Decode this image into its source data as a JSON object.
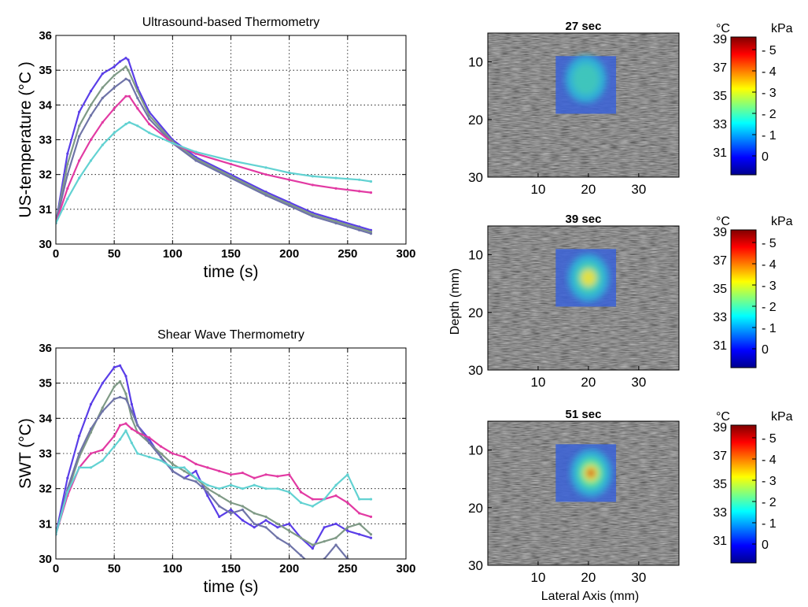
{
  "colors": {
    "series_blue": "#5a3ee8",
    "series_green": "#7f9a86",
    "series_slate": "#6f74a8",
    "series_magenta": "#e23aa3",
    "series_cyan": "#62d2d2"
  },
  "chart_data": [
    {
      "type": "line",
      "title": "Ultrasound-based Thermometry",
      "xlabel": "time (s)",
      "ylabel": "US-temperature (°C )",
      "xlim": [
        0,
        300
      ],
      "ylim": [
        30,
        36
      ],
      "xticks": [
        "0",
        "50",
        "100",
        "150",
        "200",
        "250",
        "300"
      ],
      "yticks": [
        "30",
        "31",
        "32",
        "33",
        "34",
        "35",
        "36"
      ],
      "grid": true,
      "series": [
        {
          "color": "#5a3ee8",
          "x": [
            0,
            10,
            20,
            30,
            40,
            50,
            55,
            60,
            62,
            70,
            80,
            100,
            120,
            150,
            180,
            200,
            220,
            240,
            260,
            270
          ],
          "y": [
            30.6,
            32.6,
            33.8,
            34.4,
            34.9,
            35.1,
            35.25,
            35.35,
            35.3,
            34.5,
            33.8,
            33.0,
            32.5,
            32.0,
            31.5,
            31.2,
            30.9,
            30.7,
            30.5,
            30.4
          ]
        },
        {
          "color": "#7f9a86",
          "x": [
            0,
            10,
            20,
            30,
            40,
            50,
            60,
            62,
            70,
            80,
            100,
            120,
            150,
            180,
            200,
            220,
            240,
            260,
            270
          ],
          "y": [
            30.6,
            32.3,
            33.4,
            34.0,
            34.5,
            34.85,
            35.1,
            35.0,
            34.4,
            33.7,
            32.95,
            32.45,
            31.95,
            31.45,
            31.15,
            30.85,
            30.65,
            30.45,
            30.35
          ]
        },
        {
          "color": "#6f74a8",
          "x": [
            0,
            10,
            20,
            30,
            40,
            50,
            60,
            63,
            70,
            80,
            100,
            120,
            150,
            180,
            200,
            220,
            240,
            260,
            270
          ],
          "y": [
            30.6,
            32.0,
            33.1,
            33.7,
            34.2,
            34.5,
            34.75,
            34.7,
            34.2,
            33.6,
            32.9,
            32.4,
            31.9,
            31.4,
            31.1,
            30.8,
            30.6,
            30.4,
            30.3
          ]
        },
        {
          "color": "#e23aa3",
          "x": [
            0,
            10,
            20,
            30,
            40,
            50,
            60,
            63,
            70,
            80,
            100,
            120,
            150,
            180,
            200,
            220,
            240,
            260,
            270
          ],
          "y": [
            30.6,
            31.6,
            32.4,
            33.0,
            33.5,
            33.9,
            34.25,
            34.25,
            33.9,
            33.45,
            32.9,
            32.6,
            32.3,
            32.0,
            31.85,
            31.7,
            31.6,
            31.52,
            31.48
          ]
        },
        {
          "color": "#62d2d2",
          "x": [
            0,
            10,
            20,
            30,
            40,
            50,
            60,
            63,
            70,
            80,
            100,
            120,
            150,
            180,
            200,
            220,
            240,
            260,
            270
          ],
          "y": [
            30.6,
            31.3,
            31.9,
            32.4,
            32.85,
            33.2,
            33.45,
            33.5,
            33.4,
            33.2,
            32.9,
            32.65,
            32.4,
            32.2,
            32.05,
            31.95,
            31.9,
            31.85,
            31.8
          ]
        }
      ]
    },
    {
      "type": "line",
      "title": "Shear Wave Thermometry",
      "xlabel": "time (s)",
      "ylabel": "SWT (°C)",
      "xlim": [
        0,
        300
      ],
      "ylim": [
        30,
        36
      ],
      "xticks": [
        "0",
        "50",
        "100",
        "150",
        "200",
        "250",
        "300"
      ],
      "yticks": [
        "30",
        "31",
        "32",
        "33",
        "34",
        "35",
        "36"
      ],
      "grid": true,
      "series": [
        {
          "color": "#5a3ee8",
          "x": [
            0,
            10,
            20,
            30,
            40,
            50,
            55,
            60,
            65,
            70,
            80,
            90,
            100,
            110,
            120,
            130,
            140,
            150,
            160,
            170,
            180,
            190,
            200,
            210,
            220,
            230,
            240,
            250,
            260,
            270
          ],
          "y": [
            30.7,
            32.3,
            33.5,
            34.4,
            35.0,
            35.45,
            35.5,
            35.2,
            34.4,
            33.8,
            33.4,
            32.9,
            32.5,
            32.3,
            32.5,
            31.8,
            31.2,
            31.4,
            31.1,
            30.9,
            31.1,
            30.9,
            31.0,
            30.6,
            30.3,
            30.9,
            31.0,
            30.8,
            30.7,
            30.6
          ]
        },
        {
          "color": "#7f9a86",
          "x": [
            0,
            10,
            20,
            30,
            40,
            50,
            55,
            60,
            65,
            70,
            80,
            90,
            100,
            110,
            120,
            130,
            140,
            150,
            160,
            170,
            180,
            190,
            200,
            210,
            220,
            230,
            240,
            250,
            260,
            270
          ],
          "y": [
            30.7,
            31.9,
            32.9,
            33.6,
            34.3,
            34.9,
            35.05,
            34.7,
            34.0,
            33.6,
            33.3,
            33.0,
            32.7,
            32.5,
            32.3,
            32.0,
            31.8,
            31.6,
            31.5,
            31.3,
            31.2,
            31.0,
            30.8,
            30.6,
            30.4,
            30.5,
            30.6,
            30.9,
            31.0,
            30.7
          ]
        },
        {
          "color": "#6f74a8",
          "x": [
            0,
            10,
            20,
            30,
            40,
            50,
            55,
            60,
            65,
            70,
            80,
            90,
            100,
            110,
            120,
            130,
            140,
            150,
            160,
            170,
            180,
            190,
            200,
            210,
            220,
            230,
            240,
            250,
            260,
            270
          ],
          "y": [
            30.7,
            32.0,
            33.0,
            33.7,
            34.2,
            34.55,
            34.6,
            34.55,
            34.2,
            33.8,
            33.3,
            32.9,
            32.5,
            32.3,
            32.2,
            31.9,
            31.5,
            31.3,
            31.4,
            31.0,
            30.9,
            30.6,
            30.4,
            30.1,
            29.8,
            30.0,
            30.4,
            30.0,
            29.9,
            29.8
          ]
        },
        {
          "color": "#e23aa3",
          "x": [
            0,
            10,
            20,
            30,
            40,
            50,
            55,
            60,
            65,
            70,
            80,
            90,
            100,
            110,
            120,
            130,
            140,
            150,
            160,
            170,
            180,
            190,
            200,
            210,
            220,
            230,
            240,
            250,
            260,
            270
          ],
          "y": [
            30.7,
            31.8,
            32.6,
            33.0,
            33.1,
            33.5,
            33.8,
            33.85,
            33.7,
            33.6,
            33.45,
            33.2,
            33.0,
            32.9,
            32.7,
            32.6,
            32.5,
            32.4,
            32.45,
            32.3,
            32.4,
            32.35,
            32.4,
            31.9,
            31.7,
            31.7,
            31.8,
            31.6,
            31.3,
            31.2
          ]
        },
        {
          "color": "#62d2d2",
          "x": [
            0,
            10,
            20,
            30,
            40,
            50,
            55,
            60,
            65,
            70,
            80,
            90,
            100,
            110,
            120,
            130,
            140,
            150,
            160,
            170,
            180,
            190,
            200,
            210,
            220,
            230,
            240,
            250,
            260,
            270
          ],
          "y": [
            30.7,
            31.9,
            32.6,
            32.6,
            32.8,
            33.2,
            33.4,
            33.65,
            33.3,
            33.0,
            32.9,
            32.8,
            32.6,
            32.6,
            32.3,
            32.1,
            32.0,
            32.1,
            32.0,
            32.1,
            32.0,
            32.0,
            31.9,
            31.6,
            31.5,
            31.7,
            32.1,
            32.4,
            31.7,
            31.7
          ]
        }
      ]
    },
    {
      "type": "heatmap",
      "panels": [
        {
          "title": "27 sec",
          "peak_kPa": 2.2,
          "hot_spot": {
            "lateral_mm": 19.5,
            "depth_mm": 13
          }
        },
        {
          "title": "39 sec",
          "peak_kPa": 3.4,
          "hot_spot": {
            "lateral_mm": 20,
            "depth_mm": 14
          }
        },
        {
          "title": "51 sec",
          "peak_kPa": 5.0,
          "hot_spot": {
            "lateral_mm": 20.5,
            "depth_mm": 14
          }
        }
      ],
      "ylabel": "Depth (mm)",
      "xlabel": "Lateral Axis (mm)",
      "xlim": [
        0,
        38
      ],
      "ylim": [
        5,
        30
      ],
      "xticks": [
        "10",
        "20",
        "30"
      ],
      "yticks": [
        "10",
        "20",
        "30"
      ],
      "overlay_region": {
        "lateral_mm": [
          13.5,
          25.5
        ],
        "depth_mm": [
          9,
          19
        ]
      },
      "colorbar": {
        "unit_left": "°C",
        "unit_right": "kPa",
        "ticks_left": [
          "39",
          "37",
          "35",
          "33",
          "31"
        ],
        "ticks_right": [
          "- 5",
          "- 4",
          "- 3",
          "- 2",
          "- 1",
          "0"
        ]
      }
    }
  ]
}
